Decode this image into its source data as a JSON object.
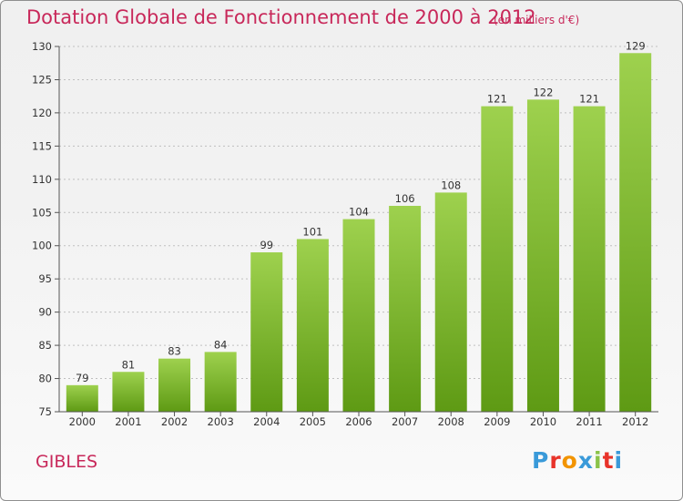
{
  "header": {
    "title": "Dotation Globale de Fonctionnement de 2000 à 2012",
    "subtitle": "(en milliers d'€)"
  },
  "footer": {
    "place": "GIBLES",
    "logo": "Proxiti",
    "logo_colors": [
      "#3a9ad9",
      "#e8332a",
      "#f29400",
      "#3a9ad9",
      "#8bc34a",
      "#e8332a",
      "#3a9ad9"
    ]
  },
  "colors": {
    "title": "#c8285a",
    "bar_light": "#9ed14e",
    "bar_dark": "#5e9a14",
    "axis": "#555555",
    "grid": "#bfbfbf"
  },
  "chart_data": {
    "type": "bar",
    "title": "Dotation Globale de Fonctionnement de 2000 à 2012",
    "subtitle": "(en milliers d'€)",
    "categories": [
      "2000",
      "2001",
      "2002",
      "2003",
      "2004",
      "2005",
      "2006",
      "2007",
      "2008",
      "2009",
      "2010",
      "2011",
      "2012"
    ],
    "values": [
      79,
      81,
      83,
      84,
      99,
      101,
      104,
      106,
      108,
      121,
      122,
      121,
      129
    ],
    "ylim": [
      75,
      130
    ],
    "yticks": [
      75,
      80,
      85,
      90,
      95,
      100,
      105,
      110,
      115,
      120,
      125,
      130
    ],
    "xlabel": "",
    "ylabel": "",
    "grid": "horizontal dashed",
    "legend": "none"
  }
}
